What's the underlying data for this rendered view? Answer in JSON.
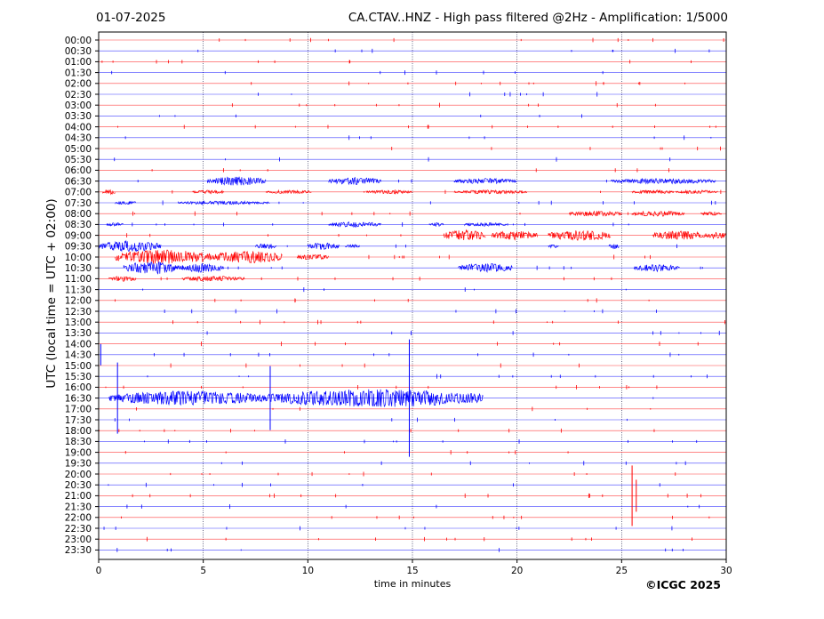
{
  "header": {
    "date": "01-07-2025",
    "title": "CA.CTAV..HNZ - High pass filtered @2Hz - Amplification: 1/5000"
  },
  "footer": {
    "copyright": "©ICGC 2025"
  },
  "chart_data": {
    "type": "line",
    "title": "CA.CTAV..HNZ - High pass filtered @2Hz - Amplification: 1/5000",
    "xlabel": "time in minutes",
    "ylabel": "UTC (local time = UTC + 02:00)",
    "xlim": [
      0,
      30
    ],
    "xticks": [
      0,
      5,
      10,
      15,
      20,
      25,
      30
    ],
    "grid": "vertical dotted lines at x ticks",
    "line_colors": [
      "#ff0000",
      "#0000ff"
    ],
    "rows": [
      "00:00",
      "00:30",
      "01:00",
      "01:30",
      "02:00",
      "02:30",
      "03:00",
      "03:30",
      "04:00",
      "04:30",
      "05:00",
      "05:30",
      "06:00",
      "06:30",
      "07:00",
      "07:30",
      "08:00",
      "08:30",
      "09:00",
      "09:30",
      "10:00",
      "10:30",
      "11:00",
      "11:30",
      "12:00",
      "12:30",
      "13:00",
      "13:30",
      "14:00",
      "14:30",
      "15:00",
      "15:30",
      "16:00",
      "16:30",
      "17:00",
      "17:30",
      "18:00",
      "18:30",
      "19:00",
      "19:30",
      "20:00",
      "20:30",
      "21:00",
      "21:30",
      "22:00",
      "22:30",
      "23:00",
      "23:30"
    ],
    "bursts": [
      {
        "row": "06:30",
        "segments": [
          [
            5.2,
            8.0,
            5
          ],
          [
            11.0,
            13.5,
            4
          ],
          [
            17.0,
            20.0,
            3
          ],
          [
            24.5,
            29.5,
            3
          ]
        ]
      },
      {
        "row": "07:00",
        "segments": [
          [
            0.2,
            0.8,
            3
          ],
          [
            4.5,
            6.0,
            2
          ],
          [
            8.0,
            10.2,
            2
          ],
          [
            12.8,
            15.0,
            2
          ],
          [
            17.0,
            20.5,
            2
          ],
          [
            25.5,
            27.5,
            2
          ],
          [
            27.6,
            29.6,
            2
          ]
        ]
      },
      {
        "row": "07:30",
        "segments": [
          [
            0.8,
            1.8,
            2
          ],
          [
            3.8,
            8.2,
            2
          ]
        ]
      },
      {
        "row": "08:00",
        "segments": [
          [
            22.5,
            25.0,
            3
          ],
          [
            25.5,
            28.0,
            3
          ],
          [
            28.8,
            29.8,
            2
          ]
        ]
      },
      {
        "row": "08:30",
        "segments": [
          [
            0.4,
            1.2,
            2
          ],
          [
            11.0,
            13.5,
            3
          ],
          [
            15.8,
            16.5,
            2
          ],
          [
            17.5,
            19.5,
            2
          ]
        ]
      },
      {
        "row": "09:00",
        "segments": [
          [
            16.5,
            18.5,
            6
          ],
          [
            18.8,
            21.0,
            5
          ],
          [
            21.5,
            24.5,
            6
          ],
          [
            26.5,
            29.0,
            5
          ],
          [
            29.0,
            30.0,
            4
          ]
        ]
      },
      {
        "row": "09:30",
        "segments": [
          [
            0.0,
            3.0,
            6
          ],
          [
            7.5,
            8.5,
            3
          ],
          [
            10.0,
            11.5,
            4
          ],
          [
            11.8,
            12.5,
            2
          ],
          [
            21.5,
            22.0,
            2
          ],
          [
            24.4,
            24.9,
            3
          ]
        ]
      },
      {
        "row": "10:00",
        "segments": [
          [
            0.8,
            5.5,
            8
          ],
          [
            5.5,
            8.8,
            7
          ],
          [
            9.5,
            11.0,
            3
          ]
        ]
      },
      {
        "row": "10:30",
        "segments": [
          [
            1.2,
            3.8,
            7
          ],
          [
            3.8,
            6.0,
            5
          ],
          [
            17.2,
            19.8,
            5
          ],
          [
            25.6,
            27.8,
            4
          ]
        ]
      },
      {
        "row": "11:00",
        "segments": [
          [
            0.5,
            1.8,
            3
          ],
          [
            4.0,
            7.0,
            3
          ]
        ]
      },
      {
        "row": "16:30",
        "segments": [
          [
            0.5,
            8.0,
            8
          ],
          [
            8.0,
            18.4,
            10
          ]
        ]
      }
    ],
    "spikes": [
      {
        "row": "14:30",
        "x": 0.1,
        "amp": 12
      },
      {
        "row": "16:30",
        "x": 0.9,
        "amp": 40
      },
      {
        "row": "16:30",
        "x": 8.2,
        "amp": 36
      },
      {
        "row": "16:30",
        "x": 14.85,
        "amp": 66
      },
      {
        "row": "21:00",
        "x": 25.5,
        "amp": 34
      },
      {
        "row": "21:00",
        "x": 25.7,
        "amp": 18
      }
    ]
  }
}
